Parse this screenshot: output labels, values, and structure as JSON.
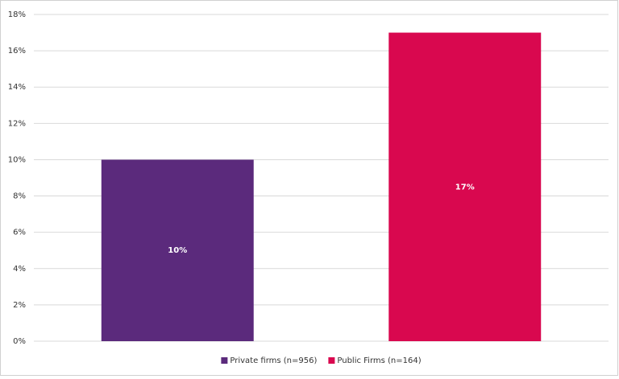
{
  "chart_data": {
    "type": "bar",
    "series": [
      {
        "name": "Private firms (n=956)",
        "color": "#5b2a7c",
        "values": [
          10
        ],
        "value_labels": [
          "10%"
        ]
      },
      {
        "name": "Public Firms (n=164)",
        "color": "#d9084f",
        "values": [
          17
        ],
        "value_labels": [
          "17%"
        ]
      }
    ],
    "ylim": [
      0,
      18
    ],
    "yticks": [
      {
        "value": 0,
        "label": "0%"
      },
      {
        "value": 2,
        "label": "2%"
      },
      {
        "value": 4,
        "label": "4%"
      },
      {
        "value": 6,
        "label": "6%"
      },
      {
        "value": 8,
        "label": "8%"
      },
      {
        "value": 10,
        "label": "10%"
      },
      {
        "value": 12,
        "label": "12%"
      },
      {
        "value": 14,
        "label": "14%"
      },
      {
        "value": 16,
        "label": "16%"
      },
      {
        "value": 18,
        "label": "18%"
      }
    ],
    "grid": true,
    "legend": "bottom"
  }
}
